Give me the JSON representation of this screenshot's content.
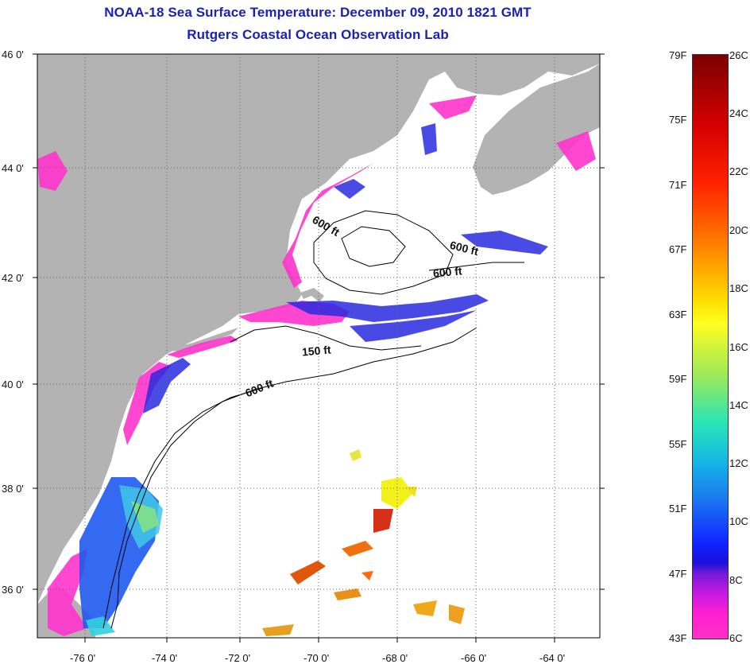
{
  "title_line1": "NOAA-18 Sea Surface Temperature:  December 09, 2010 1821 GMT",
  "title_line2": "Rutgers Coastal Ocean Observation Lab",
  "lat_labels": [
    "46 0'",
    "44 0'",
    "42 0'",
    "40 0'",
    "38 0'",
    "36 0'"
  ],
  "lon_labels": [
    "-76 0'",
    "-74 0'",
    "-72 0'",
    "-70 0'",
    "-68 0'",
    "-66 0'",
    "-64 0'"
  ],
  "contour_labels": [
    "600 ft",
    "600 ft",
    "600 ft",
    "150 ft",
    "600 ft"
  ],
  "colorbar": {
    "fahrenheit": [
      "79F",
      "75F",
      "71F",
      "67F",
      "63F",
      "59F",
      "55F",
      "51F",
      "47F",
      "43F"
    ],
    "celsius": [
      "26C",
      "24C",
      "22C",
      "20C",
      "18C",
      "16C",
      "14C",
      "12C",
      "10C",
      "8C",
      "6C"
    ]
  },
  "colors": {
    "title": "#1a22b4",
    "land": "#b3b3b3",
    "ocean": "#ffffff"
  }
}
